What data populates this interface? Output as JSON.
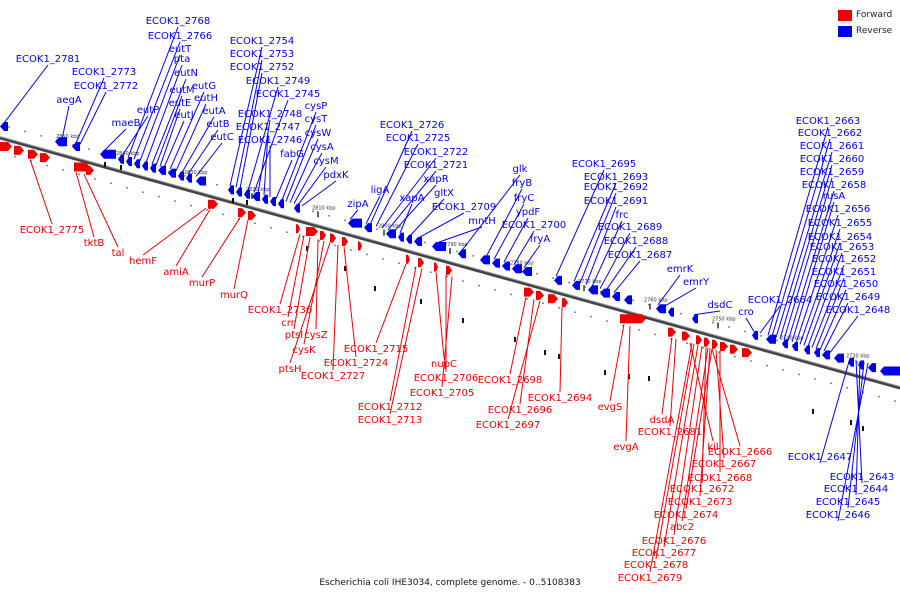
{
  "colors": {
    "forward": "#ee0000",
    "reverse": "#0000ee",
    "axis": "#555555"
  },
  "legend": [
    {
      "label": "Forward",
      "color": "#ee0000"
    },
    {
      "label": "Reverse",
      "color": "#0000ee"
    }
  ],
  "caption": "Escherichia coli IHE3034, complete genome. - 0..5108383",
  "axis_ticks": [
    "2850 kbp",
    "2840 kbp",
    "2830 kbp",
    "2820 kbp",
    "2810 kbp",
    "2800 kbp",
    "2790 kbp",
    "2780 kbp",
    "2770 kbp",
    "2760 kbp",
    "2750 kbp",
    "2740 kbp",
    "2730 kbp"
  ],
  "reverse_labels": [
    "ECOK1_2781",
    "aegA",
    "ECOK1_2773",
    "ECOK1_2772",
    "maeB",
    "eutP",
    "ECOK1_2768",
    "ECOK1_2766",
    "eutT",
    "pta",
    "eutN",
    "eutM",
    "eutE",
    "eutJ",
    "eutG",
    "eutH",
    "eutA",
    "eutB",
    "eutC",
    "ECOK1_2754",
    "ECOK1_2753",
    "ECOK1_2752",
    "ECOK1_2749",
    "ECOK1_2745",
    "ECOK1_2748",
    "ECOK1_2747",
    "ECOK1_2746",
    "fabG",
    "cysP",
    "cysT",
    "cysW",
    "cysA",
    "cysM",
    "pdxK",
    "zipA",
    "ligA",
    "ECOK1_2726",
    "ECOK1_2725",
    "ECOK1_2722",
    "ECOK1_2721",
    "xapR",
    "xapA",
    "gltX",
    "ECOK1_2709",
    "mntH",
    "glk",
    "fryB",
    "fryC",
    "ypdF",
    "ECOK1_2700",
    "fryA",
    "ECOK1_2695",
    "ECOK1_2693",
    "ECOK1_2692",
    "ECOK1_2691",
    "frc",
    "ECOK1_2689",
    "ECOK1_2688",
    "ECOK1_2687",
    "emrK",
    "emrY",
    "dsdC",
    "cro",
    "ECOK1_2664",
    "ECOK1_2663",
    "ECOK1_2662",
    "ECOK1_2661",
    "ECOK1_2660",
    "ECOK1_2659",
    "ECOK1_2658",
    "rusA",
    "ECOK1_2656",
    "ECOK1_2655",
    "ECOK1_2654",
    "ECOK1_2653",
    "ECOK1_2652",
    "ECOK1_2651",
    "ECOK1_2650",
    "ECOK1_2649",
    "ECOK1_2648",
    "ECOK1_2647",
    "ECOK1_2643",
    "ECOK1_2644",
    "ECOK1_2645",
    "ECOK1_2646"
  ],
  "forward_labels": [
    "ECOK1_2775",
    "tktB",
    "tal",
    "hemF",
    "amiA",
    "murP",
    "murQ",
    "ECOK1_2736",
    "crr",
    "ptsI",
    "cysZ",
    "cysK",
    "ptsH",
    "ECOK1_2724",
    "ECOK1_2727",
    "ECOK1_2715",
    "ECOK1_2712",
    "ECOK1_2713",
    "nupC",
    "ECOK1_2706",
    "ECOK1_2705",
    "ECOK1_2698",
    "ECOK1_2696",
    "ECOK1_2697",
    "ECOK1_2694",
    "evgS",
    "evgA",
    "dsdA",
    "ECOK1_2681",
    "kil",
    "ECOK1_2666",
    "ECOK1_2667",
    "ECOK1_2668",
    "ECOK1_2672",
    "ECOK1_2673",
    "ECOK1_2674",
    "abc2",
    "ECOK1_2676",
    "ECOK1_2677",
    "ECOK1_2678",
    "ECOK1_2679"
  ]
}
